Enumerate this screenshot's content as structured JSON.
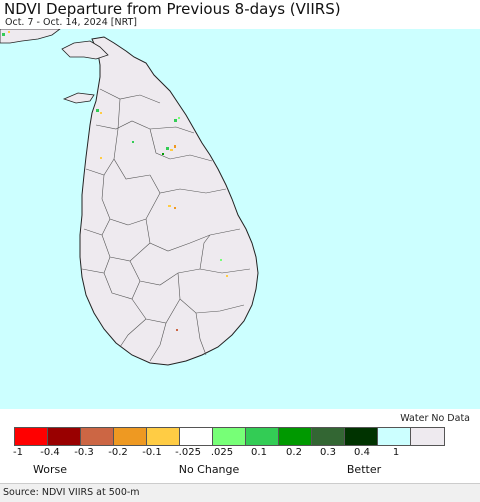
{
  "title": "NDVI Departure from Previous 8-days (VIIRS)",
  "subtitle": "Oct. 7 - Oct. 14, 2024 [NRT]",
  "map": {
    "ocean_color": "#ccffff",
    "land_color": "#eeeaef",
    "border_color": "#222222"
  },
  "legend": {
    "water_label": "Water No Data",
    "colors": [
      "#ff0000",
      "#990000",
      "#cc6644",
      "#ee9922",
      "#ffcc44",
      "#ffffff",
      "#77ff77",
      "#33cc55",
      "#009900",
      "#336633",
      "#003300",
      "#ccffff",
      "#eeeaef"
    ],
    "ticks": [
      "-1",
      "-0.4",
      "-0.3",
      "-0.2",
      "-0.1",
      "-.025",
      ".025",
      "0.1",
      "0.2",
      "0.3",
      "0.4",
      "1"
    ],
    "worse_label": "Worse",
    "nochange_label": "No Change",
    "better_label": "Better"
  },
  "source": "Source: NDVI VIIRS at 500-m"
}
